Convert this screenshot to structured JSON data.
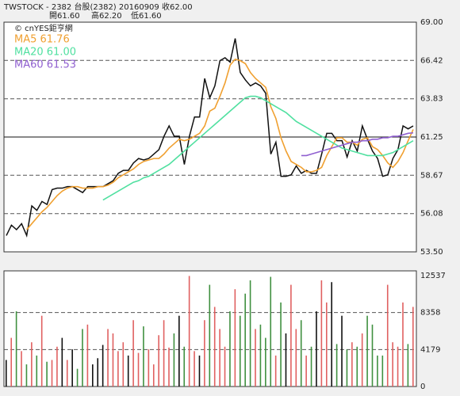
{
  "chart_data": [
    {
      "type": "line",
      "title": "TWSTOCK - 2382  台股(2382) 20160909   收62.00",
      "subtitle": [
        "開61.60",
        "高62.20",
        "低61.60"
      ],
      "source": "© cnYES鉅亨網",
      "ylim": [
        53.5,
        69.0
      ],
      "yticks": [
        {
          "value": 69,
          "label": "69.00"
        },
        66.42,
        63.83,
        61.25,
        58.67,
        56.08,
        {
          "value": 53.5,
          "label": "53.50"
        }
      ],
      "grid_styles": [
        "none",
        "dashed",
        "dashed",
        "solid",
        "dashed",
        "dashed",
        "none"
      ],
      "series": [
        {
          "name": "Close",
          "color": "#111111",
          "values": [
            54.6,
            55.3,
            55.0,
            55.4,
            54.6,
            56.6,
            56.3,
            56.9,
            56.7,
            57.7,
            57.8,
            57.8,
            57.9,
            57.9,
            57.7,
            57.5,
            57.9,
            57.9,
            57.9,
            57.9,
            58.1,
            58.3,
            58.8,
            59.0,
            59.0,
            59.5,
            59.8,
            59.7,
            59.8,
            60.1,
            60.4,
            61.3,
            62.0,
            61.3,
            61.3,
            59.4,
            61.3,
            62.6,
            62.6,
            65.2,
            63.9,
            64.7,
            66.4,
            66.6,
            66.3,
            67.9,
            65.6,
            65.1,
            64.7,
            64.9,
            64.7,
            64.2,
            60.1,
            60.9,
            58.6,
            58.6,
            58.7,
            59.3,
            58.8,
            59.0,
            58.8,
            58.8,
            60.1,
            61.5,
            61.5,
            61.0,
            61.0,
            59.9,
            61.0,
            60.3,
            62.0,
            61.1,
            60.3,
            59.8,
            58.6,
            58.7,
            59.8,
            60.4,
            62.0,
            61.8,
            62.0
          ]
        },
        {
          "name": "MA5 61.76",
          "color": "#f0a030",
          "values": [
            null,
            null,
            null,
            null,
            55.0,
            55.4,
            55.8,
            56.2,
            56.5,
            56.9,
            57.3,
            57.6,
            57.8,
            57.9,
            57.9,
            57.8,
            57.8,
            57.8,
            57.9,
            57.9,
            58.0,
            58.2,
            58.5,
            58.7,
            58.9,
            59.1,
            59.4,
            59.6,
            59.7,
            59.8,
            59.8,
            60.1,
            60.5,
            60.8,
            61.1,
            61.0,
            61.1,
            61.3,
            61.5,
            62.0,
            63.0,
            63.2,
            64.0,
            64.9,
            66.1,
            66.5,
            66.4,
            66.2,
            65.6,
            65.2,
            64.9,
            64.6,
            63.3,
            62.5,
            61.2,
            60.3,
            59.6,
            59.4,
            59.2,
            58.9,
            58.9,
            59.0,
            59.2,
            60.0,
            60.6,
            61.2,
            61.2,
            60.9,
            60.9,
            60.7,
            61.1,
            61.2,
            60.6,
            60.4,
            60.0,
            59.5,
            59.2,
            59.6,
            60.2,
            61.0,
            61.76
          ]
        },
        {
          "name": "MA20 61.00",
          "color": "#50e0a0",
          "values": [
            null,
            null,
            null,
            null,
            null,
            null,
            null,
            null,
            null,
            null,
            null,
            null,
            null,
            null,
            null,
            null,
            null,
            null,
            null,
            57.0,
            57.2,
            57.4,
            57.6,
            57.8,
            58.0,
            58.2,
            58.3,
            58.5,
            58.6,
            58.8,
            59.0,
            59.2,
            59.4,
            59.7,
            60.0,
            60.3,
            60.6,
            60.9,
            61.2,
            61.5,
            61.8,
            62.1,
            62.4,
            62.7,
            63.0,
            63.3,
            63.6,
            63.9,
            64.0,
            64.0,
            63.9,
            63.7,
            63.5,
            63.3,
            63.1,
            62.9,
            62.6,
            62.3,
            62.1,
            61.9,
            61.7,
            61.5,
            61.3,
            61.1,
            60.9,
            60.7,
            60.5,
            60.4,
            60.3,
            60.2,
            60.1,
            60.0,
            60.0,
            60.0,
            60.0,
            60.1,
            60.2,
            60.4,
            60.6,
            60.8,
            61.0
          ]
        },
        {
          "name": "MA60 61.53",
          "color": "#9060d0",
          "values": [
            null,
            null,
            null,
            null,
            null,
            null,
            null,
            null,
            null,
            null,
            null,
            null,
            null,
            null,
            null,
            null,
            null,
            null,
            null,
            null,
            null,
            null,
            null,
            null,
            null,
            null,
            null,
            null,
            null,
            null,
            null,
            null,
            null,
            null,
            null,
            null,
            null,
            null,
            null,
            null,
            null,
            null,
            null,
            null,
            null,
            null,
            null,
            null,
            null,
            null,
            null,
            null,
            null,
            null,
            null,
            null,
            null,
            null,
            60.0,
            60.0,
            60.1,
            60.2,
            60.3,
            60.4,
            60.5,
            60.6,
            60.7,
            60.8,
            60.9,
            60.9,
            61.0,
            61.0,
            61.1,
            61.1,
            61.2,
            61.2,
            61.3,
            61.3,
            61.4,
            61.5,
            61.53
          ]
        }
      ]
    },
    {
      "type": "bar",
      "ylim": [
        0,
        12537
      ],
      "yticks": [
        12537,
        8358,
        4179,
        0
      ],
      "grid_styles": [
        "none",
        "dashed",
        "dashed",
        "none"
      ],
      "colors": {
        "up": "#e06060",
        "down": "#409040",
        "flat": "#111111"
      },
      "values": [
        3000,
        5500,
        8500,
        4000,
        2500,
        5000,
        3500,
        8000,
        2800,
        3000,
        4500,
        5500,
        3000,
        4200,
        2000,
        6500,
        7000,
        2500,
        3200,
        4700,
        6500,
        6000,
        4000,
        5000,
        3500,
        7500,
        3800,
        6800,
        4200,
        2500,
        5800,
        7500,
        4400,
        6000,
        8000,
        4500,
        12500,
        4000,
        3500,
        7500,
        11500,
        9000,
        6500,
        4500,
        8500,
        11000,
        8000,
        10500,
        12000,
        6500,
        7000,
        5500,
        12400,
        3500,
        9500,
        6000,
        11500,
        6500,
        7500,
        3500,
        4500,
        8500,
        12000,
        9500,
        11800,
        4800,
        8000,
        4200,
        5000,
        4500,
        6000,
        8000,
        7000,
        3500,
        3500,
        11500,
        5000,
        4500,
        9500,
        4800,
        9000
      ]
    }
  ]
}
